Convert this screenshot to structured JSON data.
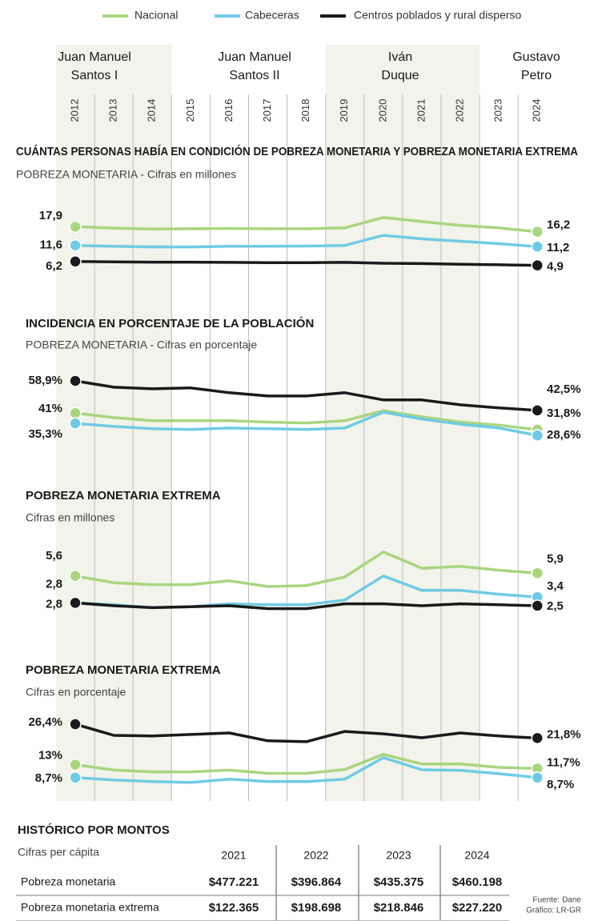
{
  "legend": [
    {
      "name": "Nacional",
      "color": "#a9d57f"
    },
    {
      "name": "Cabeceras",
      "color": "#6fcbe5"
    },
    {
      "name": "Centros poblados y rural disperso",
      "color": "#1a1a1a"
    }
  ],
  "periods": [
    {
      "lines": [
        "Juan Manuel",
        "Santos I"
      ]
    },
    {
      "lines": [
        "Juan Manuel",
        "Santos II"
      ]
    },
    {
      "lines": [
        "Iván",
        "Duque"
      ]
    },
    {
      "lines": [
        "Gustavo",
        "Petro"
      ]
    }
  ],
  "years": [
    "2012",
    "2013",
    "2014",
    "2015",
    "2016",
    "2017",
    "2018",
    "2019",
    "2020",
    "2021",
    "2022",
    "2023",
    "2024"
  ],
  "chart_data": [
    {
      "type": "line",
      "title": "CUÁNTAS PERSONAS HABÍA EN CONDICIÓN DE POBREZA MONETARIA Y POBREZA MONETARIA EXTREMA",
      "subtitle": "POBREZA MONETARIA - Cifras en millones",
      "ylim": [
        4,
        22
      ],
      "series": [
        {
          "values": [
            17.9,
            17.4,
            17.1,
            17.2,
            17.3,
            17.2,
            17.2,
            17.5,
            21.0,
            19.6,
            18.3,
            17.5,
            16.2
          ],
          "value_labels": [
            "17,9",
            null,
            null,
            null,
            null,
            null,
            null,
            null,
            null,
            null,
            null,
            null,
            "16,2"
          ]
        },
        {
          "values": [
            11.6,
            11.3,
            11.1,
            11.1,
            11.3,
            11.3,
            11.4,
            11.6,
            15.0,
            13.8,
            13.0,
            12.2,
            11.2
          ],
          "value_labels": [
            "11,6",
            null,
            null,
            null,
            null,
            null,
            null,
            null,
            null,
            null,
            null,
            null,
            "11,2"
          ]
        },
        {
          "values": [
            6.2,
            6.1,
            6.0,
            6.0,
            5.9,
            5.8,
            5.8,
            5.9,
            5.6,
            5.5,
            5.3,
            5.1,
            4.9
          ],
          "value_labels": [
            "6,2",
            null,
            null,
            null,
            null,
            null,
            null,
            null,
            null,
            null,
            null,
            null,
            "4,9"
          ]
        }
      ]
    },
    {
      "type": "line",
      "title": "INCIDENCIA EN PORCENTAJE DE LA POBLACIÓN",
      "subtitle": "POBREZA MONETARIA - Cifras en porcentaje",
      "ylim": [
        26,
        62
      ],
      "series": [
        {
          "values": [
            41,
            38.5,
            36.8,
            36.8,
            36.8,
            36.0,
            35.5,
            36.8,
            42.3,
            39.0,
            36.0,
            34.3,
            31.8
          ],
          "value_labels": [
            "41%",
            null,
            null,
            null,
            null,
            null,
            null,
            null,
            null,
            null,
            null,
            null,
            "31,8%"
          ]
        },
        {
          "values": [
            35.3,
            33.6,
            32.3,
            31.9,
            32.7,
            32.3,
            31.9,
            32.7,
            41.5,
            37.7,
            34.8,
            32.7,
            28.6
          ],
          "value_labels": [
            "35,3%",
            null,
            null,
            null,
            null,
            null,
            null,
            null,
            null,
            null,
            null,
            null,
            "28,6%"
          ]
        },
        {
          "values": [
            58.9,
            55.4,
            54.5,
            55.0,
            52.3,
            50.5,
            50.5,
            52.3,
            48.3,
            48.3,
            45.6,
            43.9,
            42.5
          ],
          "value_labels": [
            "58,9%",
            null,
            null,
            null,
            null,
            null,
            null,
            null,
            null,
            null,
            null,
            null,
            "42,5%"
          ]
        }
      ]
    },
    {
      "type": "line",
      "title": "POBREZA MONETARIA EXTREMA",
      "subtitle": "Cifras en millones",
      "ylim": [
        2,
        8.5
      ],
      "series": [
        {
          "values": [
            5.6,
            4.9,
            4.7,
            4.7,
            5.1,
            4.5,
            4.6,
            5.5,
            8.1,
            6.4,
            6.6,
            6.2,
            5.9
          ],
          "value_labels": [
            "5,6",
            null,
            null,
            null,
            null,
            null,
            null,
            null,
            null,
            null,
            null,
            null,
            "5,9"
          ]
        },
        {
          "values": [
            2.8,
            2.6,
            2.3,
            2.4,
            2.7,
            2.6,
            2.6,
            3.1,
            5.6,
            4.1,
            4.1,
            3.7,
            3.4
          ],
          "value_labels": [
            "2,8",
            null,
            null,
            null,
            null,
            null,
            null,
            null,
            null,
            null,
            null,
            null,
            "3,4"
          ]
        },
        {
          "values": [
            2.8,
            2.5,
            2.3,
            2.4,
            2.5,
            2.2,
            2.2,
            2.7,
            2.7,
            2.5,
            2.7,
            2.6,
            2.5
          ],
          "value_labels": [
            "2,8",
            null,
            null,
            null,
            null,
            null,
            null,
            null,
            null,
            null,
            null,
            null,
            "2,5"
          ]
        }
      ]
    },
    {
      "type": "line",
      "title": "POBREZA MONETARIA EXTREMA",
      "subtitle": "Cifras en porcentaje",
      "ylim": [
        6,
        28
      ],
      "series": [
        {
          "values": [
            13,
            11.2,
            10.6,
            10.6,
            11.2,
            10.1,
            10.1,
            11.4,
            16.4,
            13.2,
            13.2,
            12.1,
            11.7
          ],
          "value_labels": [
            "13%",
            null,
            null,
            null,
            null,
            null,
            null,
            null,
            null,
            null,
            null,
            null,
            "11,7%"
          ]
        },
        {
          "values": [
            8.7,
            7.9,
            7.4,
            7.1,
            8.2,
            7.4,
            7.4,
            8.2,
            15.3,
            11.3,
            11.1,
            10.0,
            8.7
          ],
          "value_labels": [
            "8,7%",
            null,
            null,
            null,
            null,
            null,
            null,
            null,
            null,
            null,
            null,
            null,
            "8,7%"
          ]
        },
        {
          "values": [
            26.4,
            22.7,
            22.5,
            23.0,
            23.5,
            20.9,
            20.6,
            24.0,
            23.2,
            21.9,
            23.5,
            22.5,
            21.8
          ],
          "value_labels": [
            "26,4%",
            null,
            null,
            null,
            null,
            null,
            null,
            null,
            null,
            null,
            null,
            null,
            "21,8%"
          ]
        }
      ]
    }
  ],
  "table": {
    "title": "HISTÓRICO POR MONTOS",
    "subtitle": "Cifras per cápita",
    "columns": [
      "2021",
      "2022",
      "2023",
      "2024"
    ],
    "rows": [
      {
        "label": "Pobreza monetaria",
        "values": [
          "$477.221",
          "$396.864",
          "$435.375",
          "$460.198"
        ]
      },
      {
        "label": "Pobreza monetaria extrema",
        "values": [
          "$122.365",
          "$198.698",
          "$218.846",
          "$227.220"
        ]
      }
    ]
  },
  "footer": [
    "Fuente: Dane",
    "Gráfico: LR-GR"
  ]
}
